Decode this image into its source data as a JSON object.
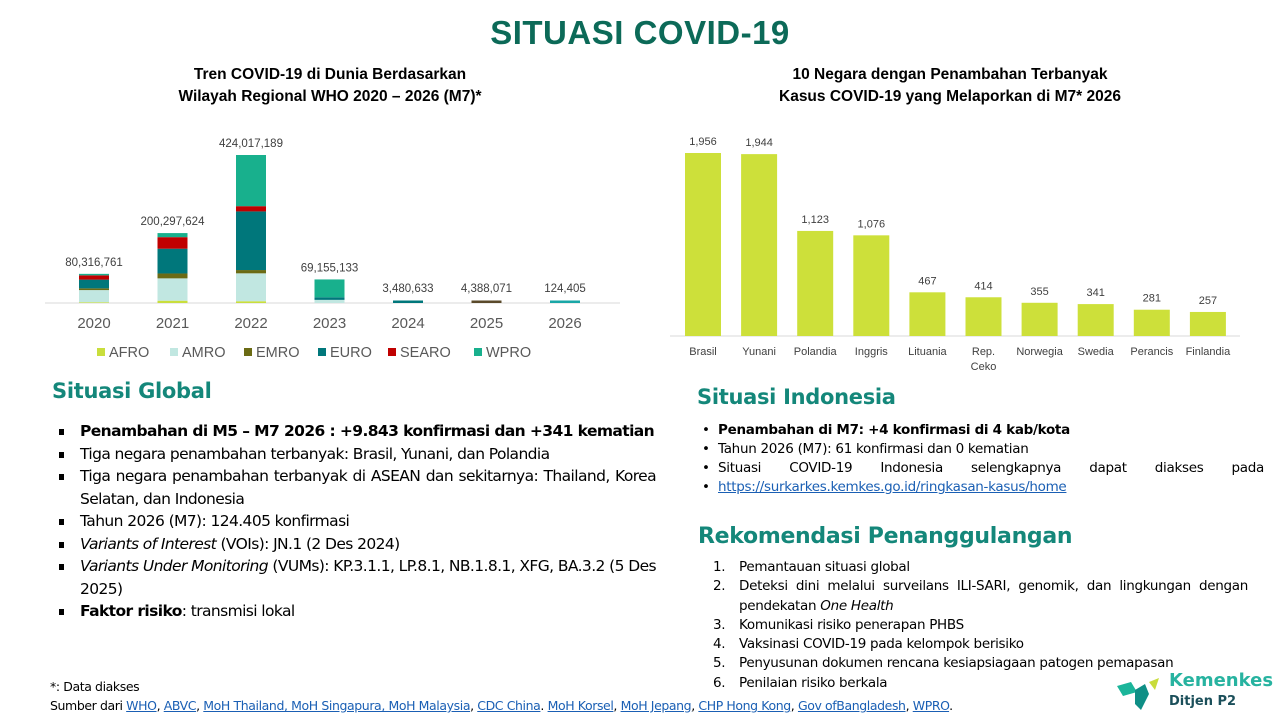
{
  "title": "SITUASI COVID-19",
  "chart_data": [
    {
      "type": "bar",
      "stacked": true,
      "title": "Tren COVID-19 di Dunia Berdasarkan Wilayah Regional WHO 2020 – 2026 (M7)*",
      "title_lines": [
        "Tren COVID-19 di Dunia Berdasarkan",
        "Wilayah Regional WHO 2020 – 2026 (M7)*"
      ],
      "categories": [
        "2020",
        "2021",
        "2022",
        "2023",
        "2024",
        "2025",
        "2026"
      ],
      "totals": [
        80316761,
        200297624,
        424017189,
        69155133,
        3480633,
        4388071,
        124405
      ],
      "total_labels": [
        "80,316,761",
        "200,297,624",
        "424,017,189",
        "69,155,133",
        "3,480,633",
        "4,388,071",
        "124,405"
      ],
      "series": [
        {
          "name": "AFRO",
          "color": "#c9de3c",
          "values": [
            2000000,
            6600000,
            5000000,
            300000,
            50000,
            30000,
            2000
          ]
        },
        {
          "name": "AMRO",
          "color": "#c1e7e1",
          "values": [
            35000000,
            64000000,
            80000000,
            9000000,
            600000,
            500000,
            40000
          ]
        },
        {
          "name": "EMRO",
          "color": "#6b6b14",
          "values": [
            5000000,
            14000000,
            9400000,
            500000,
            100000,
            3600000,
            3000
          ]
        },
        {
          "name": "EURO",
          "color": "#00777b",
          "values": [
            25000000,
            71000000,
            168000000,
            7500000,
            1600000,
            150000,
            30000
          ]
        },
        {
          "name": "SEARO",
          "color": "#c00000",
          "values": [
            12216761,
            33000000,
            15000000,
            855133,
            130633,
            8071,
            2405
          ]
        },
        {
          "name": "WPRO",
          "color": "#18b08d",
          "values": [
            1100000,
            11697624,
            146617189,
            51000000,
            1000000,
            100000,
            47000
          ]
        }
      ],
      "legend": "bottom",
      "grid": false
    },
    {
      "type": "bar",
      "title": "10 Negara dengan Penambahan Terbanyak Kasus COVID-19 yang Melaporkan di M7* 2026",
      "title_lines": [
        "10 Negara dengan Penambahan Terbanyak",
        "Kasus COVID-19 yang Melaporkan di M7* 2026"
      ],
      "categories": [
        "Brasil",
        "Yunani",
        "Polandia",
        "Inggris",
        "Lituania",
        "Rep. Ceko",
        "Norwegia",
        "Swedia",
        "Perancis",
        "Finlandia"
      ],
      "values": [
        1956,
        1944,
        1123,
        1076,
        467,
        414,
        355,
        341,
        281,
        257
      ],
      "value_labels": [
        "1,956",
        "1,944",
        "1,123",
        "1,076",
        "467",
        "414",
        "355",
        "341",
        "281",
        "257"
      ],
      "color": "#cde03a",
      "grid": false
    }
  ],
  "global": {
    "heading": "Situasi Global",
    "items": [
      {
        "b": "Penambahan di M5 – M7 2026 : +9.843 konfirmasi dan +341 kematian",
        "i": "",
        "t": ""
      },
      {
        "b": "",
        "i": "",
        "t": "Tiga negara penambahan terbanyak:  Brasil, Yunani, dan Polandia"
      },
      {
        "b": "",
        "i": "",
        "t": "Tiga negara penambahan terbanyak di ASEAN dan sekitarnya: Thailand, Korea Selatan, dan Indonesia"
      },
      {
        "b": "",
        "i": "",
        "t": "Tahun 2026 (M7): 124.405 konfirmasi"
      },
      {
        "b": "",
        "i": "Variants of Interest",
        "t": " (VOIs): JN.1 (2 Des 2024)"
      },
      {
        "b": "",
        "i": "Variants Under Monitoring",
        "t": " (VUMs): KP.3.1.1, LP.8.1, NB.1.8.1, XFG, BA.3.2 (5 Des 2025)"
      },
      {
        "b": "Faktor risiko",
        "i": "",
        "t": ": transmisi lokal"
      }
    ]
  },
  "indonesia": {
    "heading": "Situasi Indonesia",
    "item1": "Penambahan di M7: +4 konfirmasi di 4 kab/kota",
    "item2": "Tahun 2026 (M7): 61 konfirmasi dan 0 kematian",
    "item3": "Situasi COVID-19 Indonesia selengkapnya dapat diakses pada",
    "link": "https://surkarkes.kemkes.go.id/ringkasan-kasus/home"
  },
  "rekomendasi": {
    "heading": "Rekomendasi Penanggulangan",
    "items": [
      {
        "n": "1.",
        "t": "Pemantauan situasi global",
        "i": ""
      },
      {
        "n": "2.",
        "t": "Deteksi dini melalui surveilans ILI-SARI, genomik, dan lingkungan dengan pendekatan ",
        "i": "One Health"
      },
      {
        "n": "3.",
        "t": "Komunikasi risiko penerapan PHBS",
        "i": ""
      },
      {
        "n": "4.",
        "t": "Vaksinasi COVID-19 pada kelompok berisiko",
        "i": ""
      },
      {
        "n": "5.",
        "t": "Penyusunan dokumen rencana kesiapsiagaan patogen pemapasan",
        "i": ""
      },
      {
        "n": "6.",
        "t": "Penilaian risiko berkala",
        "i": ""
      }
    ]
  },
  "footer": {
    "note": "*: Data diakses",
    "source_prefix": "Sumber dari ",
    "links": [
      "WHO",
      "ABVC",
      "MoH Thailand, MoH Singapura, MoH Malaysia",
      "CDC China",
      "MoH Korsel",
      "MoH Jepang",
      "CHP Hong Kong",
      "Gov ofBangladesh",
      "WPRO"
    ],
    "seps": [
      ", ",
      ", ",
      ", ",
      ". ",
      ", ",
      ", ",
      ", ",
      ", ",
      "."
    ]
  },
  "logo": {
    "name": "Kemenkes",
    "sub": "Ditjen P2"
  }
}
